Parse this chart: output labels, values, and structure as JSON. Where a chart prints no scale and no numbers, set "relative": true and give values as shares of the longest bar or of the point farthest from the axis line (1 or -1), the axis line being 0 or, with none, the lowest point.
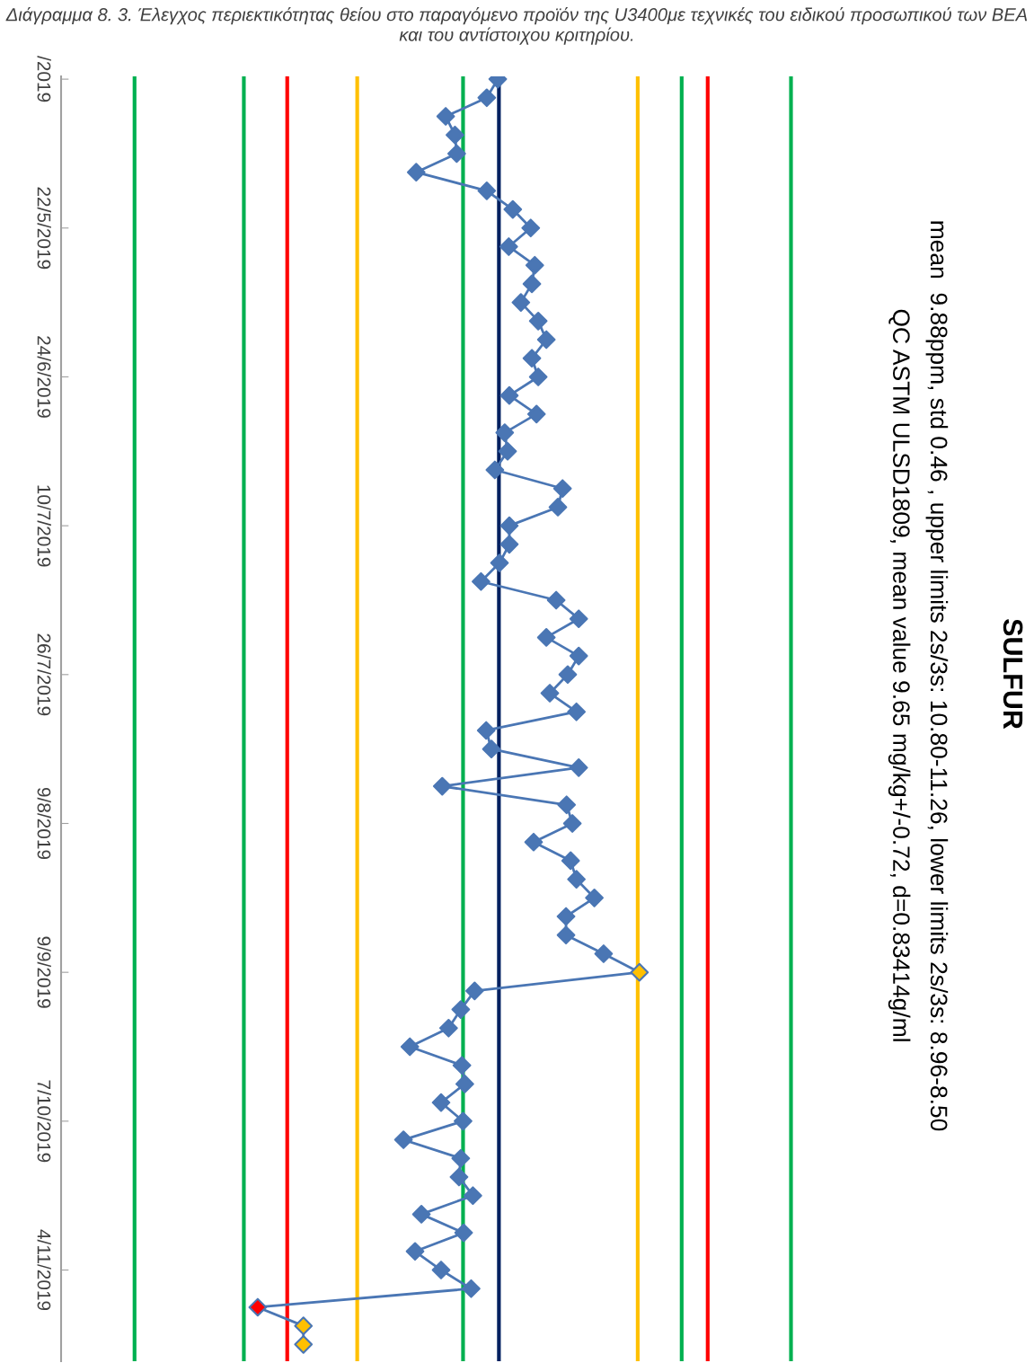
{
  "chart_data": {
    "type": "line",
    "title": "SULFUR",
    "subtitle": "mean  9.88ppm, std 0.46 , upper limits 2s/3s: 10.80-11.26, lower limits 2s/3s: 8.96-8.50\nQC ASTM ULSD1809, mean value 9.65 mg/kg+/-0.72, d=0.83414g/ml",
    "annotations": [
      "Διάγραμμα 8. 3. Έλεγχος περιεκτικότητας θείου στο παραγόμενο προϊόν της U3400με τεχνικές του ειδικού προσωπικού των ΒΕΑ και του αντίστοιχου κριτηρίου."
    ],
    "categories": [
      "/2019",
      null,
      null,
      null,
      null,
      null,
      null,
      null,
      "22/5/2019",
      null,
      null,
      null,
      null,
      null,
      null,
      null,
      "24/6/2019",
      null,
      null,
      null,
      null,
      null,
      null,
      null,
      "10/7/2019",
      null,
      null,
      null,
      null,
      null,
      null,
      null,
      "26/7/2019",
      null,
      null,
      null,
      null,
      null,
      null,
      null,
      "9/8/2019",
      null,
      null,
      null,
      null,
      null,
      null,
      null,
      "9/9/2019",
      null,
      null,
      null,
      null,
      null,
      null,
      null,
      "7/10/2019",
      null,
      null,
      null,
      null,
      null,
      null,
      null,
      "4/11/2019",
      null,
      null,
      null,
      null
    ],
    "relative": true,
    "orientation": "horizontal",
    "series": [
      {
        "color": "#4a76b4",
        "colors": [
          "#4a76b4",
          "#4a76b4",
          "#4a76b4",
          "#4a76b4",
          "#4a76b4",
          "#4a76b4",
          "#4a76b4",
          "#4a76b4",
          "#4a76b4",
          "#4a76b4",
          "#4a76b4",
          "#4a76b4",
          "#4a76b4",
          "#4a76b4",
          "#4a76b4",
          "#4a76b4",
          "#4a76b4",
          "#4a76b4",
          "#4a76b4",
          "#4a76b4",
          "#4a76b4",
          "#4a76b4",
          "#4a76b4",
          "#4a76b4",
          "#4a76b4",
          "#4a76b4",
          "#4a76b4",
          "#4a76b4",
          "#4a76b4",
          "#4a76b4",
          "#4a76b4",
          "#4a76b4",
          "#4a76b4",
          "#4a76b4",
          "#4a76b4",
          "#4a76b4",
          "#4a76b4",
          "#4a76b4",
          "#4a76b4",
          "#4a76b4",
          "#4a76b4",
          "#4a76b4",
          "#4a76b4",
          "#4a76b4",
          "#4a76b4",
          "#4a76b4",
          "#4a76b4",
          "#4a76b4",
          "#ffc000",
          "#4a76b4",
          "#4a76b4",
          "#4a76b4",
          "#4a76b4",
          "#4a76b4",
          "#4a76b4",
          "#4a76b4",
          "#4a76b4",
          "#4a76b4",
          "#4a76b4",
          "#4a76b4",
          "#4a76b4",
          "#4a76b4",
          "#4a76b4",
          "#4a76b4",
          "#4a76b4",
          "#4a76b4",
          "#ff0000",
          "#ffc000",
          "#ffc000"
        ],
        "values": [
          0.755,
          0.736,
          0.665,
          0.681,
          0.684,
          0.614,
          0.736,
          0.781,
          0.812,
          0.774,
          0.819,
          0.814,
          0.795,
          0.825,
          0.839,
          0.814,
          0.825,
          0.775,
          0.822,
          0.767,
          0.772,
          0.75,
          0.867,
          0.859,
          0.775,
          0.775,
          0.758,
          0.726,
          0.856,
          0.895,
          0.839,
          0.895,
          0.876,
          0.845,
          0.891,
          0.735,
          0.744,
          0.895,
          0.659,
          0.874,
          0.884,
          0.817,
          0.881,
          0.891,
          0.922,
          0.873,
          0.873,
          0.938,
          1,
          0.715,
          0.691,
          0.67,
          0.603,
          0.693,
          0.698,
          0.657,
          0.695,
          0.592,
          0.691,
          0.688,
          0.712,
          0.623,
          0.696,
          0.612,
          0.657,
          0.709,
          0.34,
          0.419,
          0.419
        ]
      }
    ],
    "tick_labels": "x",
    "marker": "diamond",
    "line_style": "solid",
    "ref_lines": [
      {
        "axis": "x",
        "value": 0.127,
        "color": "#00b050"
      },
      {
        "axis": "x",
        "value": 0.316,
        "color": "#00b050"
      },
      {
        "axis": "x",
        "value": 0.391,
        "color": "#ff0000"
      },
      {
        "axis": "x",
        "value": 0.512,
        "color": "#ffc000"
      },
      {
        "axis": "x",
        "value": 0.695,
        "color": "#00b050"
      },
      {
        "axis": "x",
        "value": 0.757,
        "color": "#002060"
      },
      {
        "axis": "x",
        "value": 0.997,
        "color": "#ffc000"
      },
      {
        "axis": "x",
        "value": 1.073,
        "color": "#00b050"
      },
      {
        "axis": "x",
        "value": 1.118,
        "color": "#ff0000"
      },
      {
        "axis": "x",
        "value": 1.262,
        "color": "#00b050"
      }
    ]
  }
}
